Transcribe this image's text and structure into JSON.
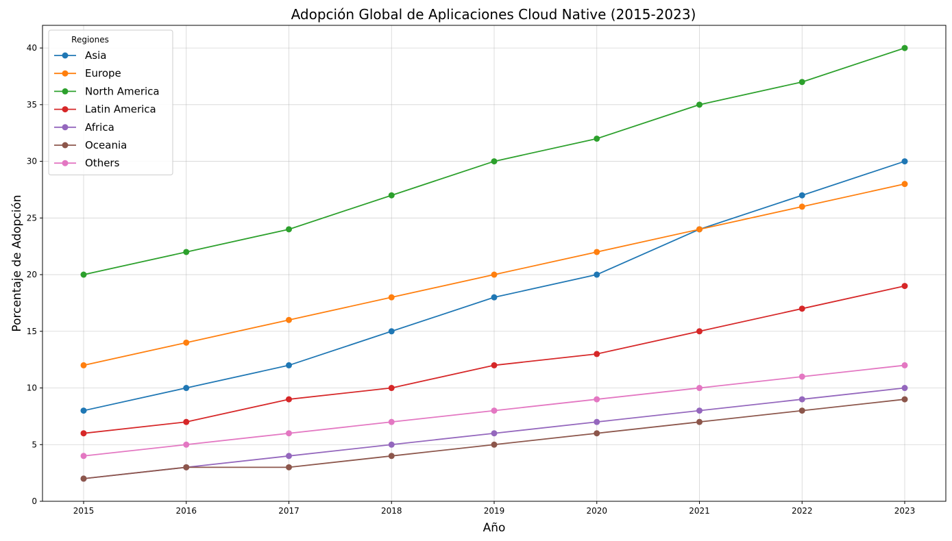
{
  "chart_data": {
    "type": "line",
    "title": "Adopción Global de Aplicaciones Cloud Native (2015-2023)",
    "xlabel": "Año",
    "ylabel": "Porcentaje de Adopción",
    "x": [
      2015,
      2016,
      2017,
      2018,
      2019,
      2020,
      2021,
      2022,
      2023
    ],
    "ylim": [
      0,
      42
    ],
    "yticks": [
      0,
      5,
      10,
      15,
      20,
      25,
      30,
      35,
      40
    ],
    "grid": true,
    "legend": {
      "title": "Regiones",
      "placement": "top-left"
    },
    "series": [
      {
        "name": "Asia",
        "color": "#1f77b4",
        "values": [
          8,
          10,
          12,
          15,
          18,
          20,
          24,
          27,
          30
        ]
      },
      {
        "name": "Europe",
        "color": "#ff7f0e",
        "values": [
          12,
          14,
          16,
          18,
          20,
          22,
          24,
          26,
          28
        ]
      },
      {
        "name": "North America",
        "color": "#2ca02c",
        "values": [
          20,
          22,
          24,
          27,
          30,
          32,
          35,
          37,
          40
        ]
      },
      {
        "name": "Latin America",
        "color": "#d62728",
        "values": [
          6,
          7,
          9,
          10,
          12,
          13,
          15,
          17,
          19
        ]
      },
      {
        "name": "Africa",
        "color": "#9467bd",
        "values": [
          2,
          3,
          4,
          5,
          6,
          7,
          8,
          9,
          10
        ]
      },
      {
        "name": "Oceania",
        "color": "#8c564b",
        "values": [
          2,
          3,
          3,
          4,
          5,
          6,
          7,
          8,
          9
        ]
      },
      {
        "name": "Others",
        "color": "#e377c2",
        "values": [
          4,
          5,
          6,
          7,
          8,
          9,
          10,
          11,
          12
        ]
      }
    ]
  }
}
